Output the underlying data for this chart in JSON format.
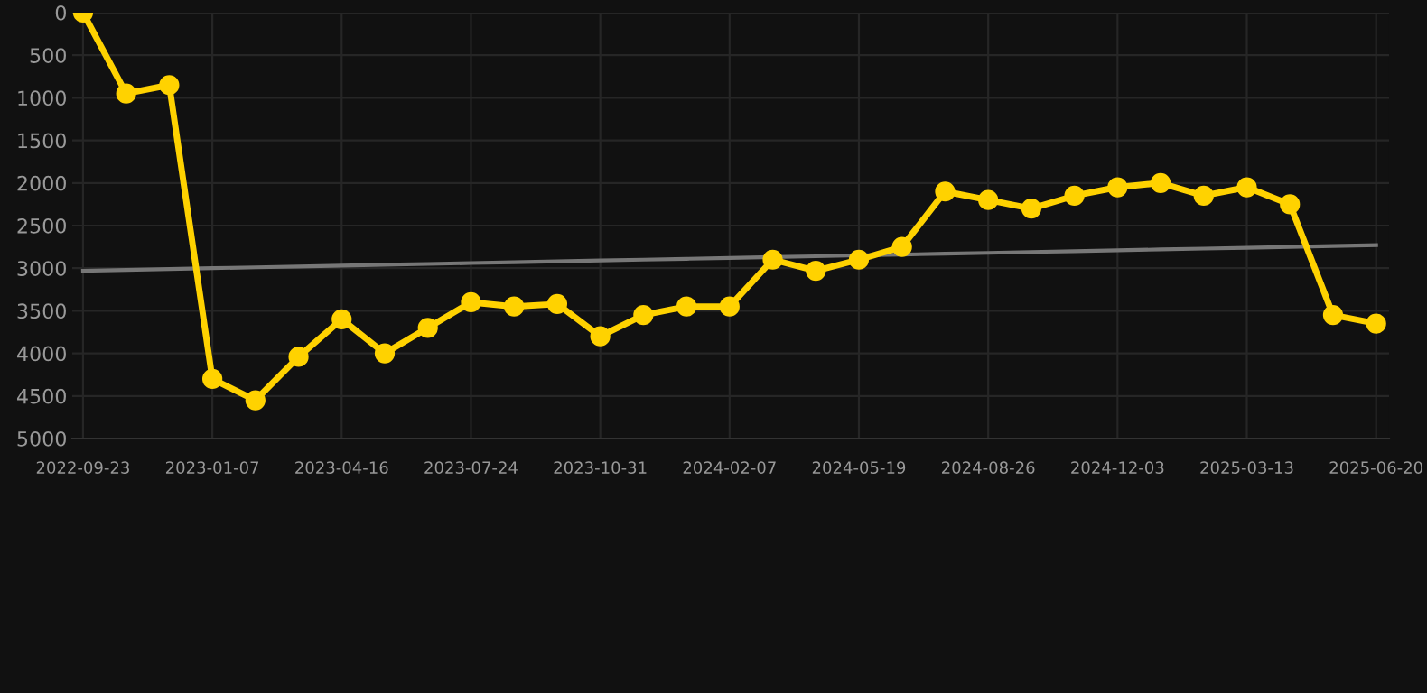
{
  "chart_data": {
    "type": "line",
    "categories": [
      "2022-09-23",
      null,
      null,
      "2023-01-07",
      null,
      null,
      "2023-04-16",
      null,
      null,
      "2023-07-24",
      null,
      null,
      "2023-10-31",
      null,
      null,
      "2024-02-07",
      null,
      null,
      "2024-05-19",
      null,
      null,
      "2024-08-26",
      null,
      null,
      "2024-12-03",
      null,
      null,
      "2025-03-13",
      null,
      null,
      "2025-06-20"
    ],
    "series": [
      {
        "color": "#ffd200",
        "marker": "circle",
        "values": [
          0,
          950,
          850,
          4300,
          4550,
          4040,
          3600,
          4000,
          3700,
          3400,
          3450,
          3420,
          3800,
          3550,
          3450,
          3450,
          2900,
          3030,
          2900,
          2750,
          2100,
          2200,
          2300,
          2150,
          2050,
          2000,
          2150,
          2050,
          2250,
          3550,
          3650
        ]
      },
      {
        "type": "line",
        "color": "#777777",
        "marker": "none",
        "values": [
          3030,
          3020,
          3010,
          3000,
          2990,
          2980,
          2970,
          2960,
          2950,
          2940,
          2930,
          2920,
          2910,
          2900,
          2890,
          2880,
          2870,
          2860,
          2850,
          2840,
          2830,
          2820,
          2810,
          2800,
          2790,
          2780,
          2770,
          2760,
          2750,
          2740,
          2730
        ]
      }
    ],
    "ylim": [
      5000,
      0
    ],
    "yticks": [
      0,
      500,
      1000,
      1500,
      2000,
      2500,
      3000,
      3500,
      4000,
      4500,
      5000
    ],
    "grid": true
  }
}
